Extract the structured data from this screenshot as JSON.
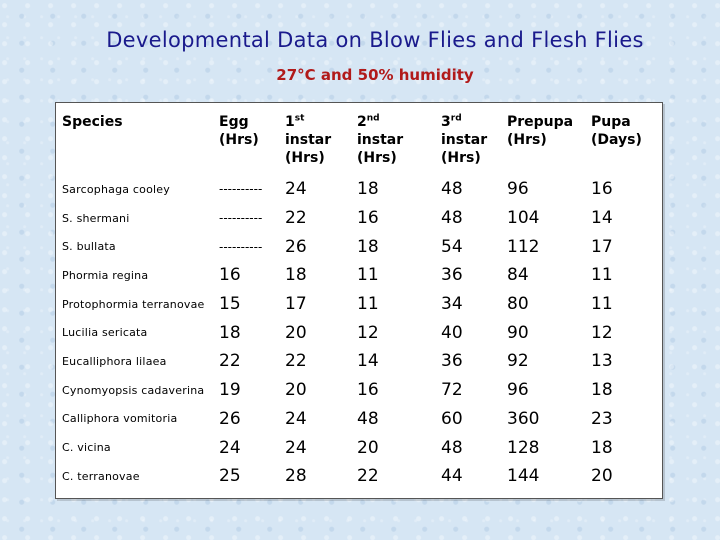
{
  "title": "Developmental Data on Blow Flies and Flesh Flies",
  "subtitle": "27°C and 50% humidity",
  "headers": {
    "species": "Species",
    "egg": [
      "Egg",
      "(Hrs)"
    ],
    "instar1": {
      "num": "1",
      "sup": "st",
      "word": "instar",
      "unit": "(Hrs)"
    },
    "instar2": {
      "num": "2",
      "sup": "nd",
      "word": "instar",
      "unit": "(Hrs)"
    },
    "instar3": {
      "num": "3",
      "sup": "rd",
      "word": "instar",
      "unit": "(Hrs)"
    },
    "prepupa": [
      "Prepupa",
      "(Hrs)"
    ],
    "pupa": [
      "Pupa",
      "(Days)"
    ]
  },
  "rows": [
    [
      "Sarcophaga cooley",
      "----------",
      "24",
      "18",
      "48",
      "96",
      "16"
    ],
    [
      "S. shermani",
      "----------",
      "22",
      "16",
      "48",
      "104",
      "14"
    ],
    [
      "S. bullata",
      "----------",
      "26",
      "18",
      "54",
      "112",
      "17"
    ],
    [
      "Phormia regina",
      "16",
      "18",
      "11",
      "36",
      "84",
      "11"
    ],
    [
      "Protophormia terranovae",
      "15",
      "17",
      "11",
      "34",
      "80",
      "11"
    ],
    [
      "Lucilia sericata",
      "18",
      "20",
      "12",
      "40",
      "90",
      "12"
    ],
    [
      "Eucalliphora lilaea",
      "22",
      "22",
      "14",
      "36",
      "92",
      "13"
    ],
    [
      "Cynomyopsis cadaverina",
      "19",
      "20",
      "16",
      "72",
      "96",
      "18"
    ],
    [
      "Calliphora vomitoria",
      "26",
      "24",
      "48",
      "60",
      "360",
      "23"
    ],
    [
      "C. vicina",
      "24",
      "24",
      "20",
      "48",
      "128",
      "18"
    ],
    [
      "C. terranovae",
      "25",
      "28",
      "22",
      "44",
      "144",
      "20"
    ]
  ]
}
